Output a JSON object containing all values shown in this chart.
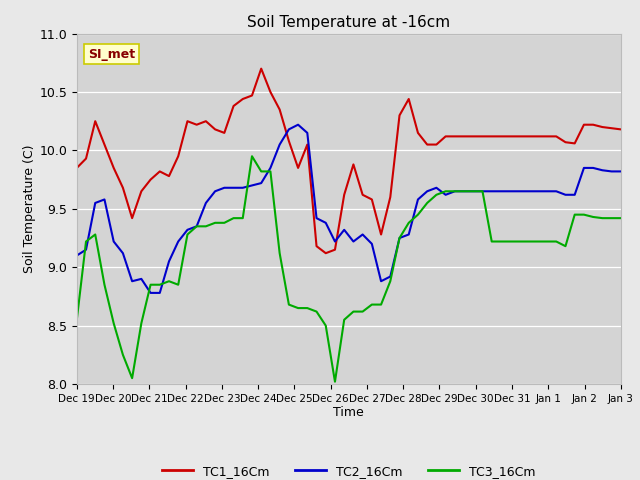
{
  "title": "Soil Temperature at -16cm",
  "xlabel": "Time",
  "ylabel": "Soil Temperature (C)",
  "ylim": [
    8.0,
    11.0
  ],
  "yticks": [
    8.0,
    8.5,
    9.0,
    9.5,
    10.0,
    10.5,
    11.0
  ],
  "legend_labels": [
    "TC1_16Cm",
    "TC2_16Cm",
    "TC3_16Cm"
  ],
  "line_colors": [
    "#cc0000",
    "#0000cc",
    "#00aa00"
  ],
  "line_width": 1.5,
  "background_color": "#e8e8e8",
  "plot_bg_color": "#d4d4d4",
  "annotation_text": "SI_met",
  "annotation_bg": "#ffffcc",
  "annotation_border": "#cccc00",
  "annotation_text_color": "#880000",
  "xtick_labels": [
    "Dec 19",
    "Dec 20",
    "Dec 21",
    "Dec 22",
    "Dec 23",
    "Dec 24",
    "Dec 25",
    "Dec 26",
    "Dec 27",
    "Dec 28",
    "Dec 29",
    "Dec 30",
    "Dec 31",
    "Jan 1",
    "Jan 2",
    "Jan 3"
  ],
  "TC1": [
    9.85,
    9.93,
    10.25,
    10.05,
    9.85,
    9.68,
    9.42,
    9.65,
    9.75,
    9.82,
    9.78,
    9.95,
    10.25,
    10.22,
    10.25,
    10.18,
    10.15,
    10.38,
    10.44,
    10.47,
    10.7,
    10.5,
    10.35,
    10.08,
    9.85,
    10.05,
    9.18,
    9.12,
    9.15,
    9.62,
    9.88,
    9.62,
    9.58,
    9.28,
    9.6,
    10.3,
    10.44,
    10.15,
    10.05,
    10.05,
    10.12,
    10.12,
    10.12,
    10.12,
    10.12,
    10.12,
    10.12,
    10.12,
    10.12,
    10.12,
    10.12,
    10.12,
    10.12,
    10.07,
    10.06,
    10.22,
    10.22,
    10.2,
    10.19,
    10.18
  ],
  "TC2": [
    9.1,
    9.15,
    9.55,
    9.58,
    9.22,
    9.12,
    8.88,
    8.9,
    8.78,
    8.78,
    9.05,
    9.22,
    9.32,
    9.35,
    9.55,
    9.65,
    9.68,
    9.68,
    9.68,
    9.7,
    9.72,
    9.85,
    10.05,
    10.18,
    10.22,
    10.15,
    9.42,
    9.38,
    9.22,
    9.32,
    9.22,
    9.28,
    9.2,
    8.88,
    8.92,
    9.25,
    9.28,
    9.58,
    9.65,
    9.68,
    9.62,
    9.65,
    9.65,
    9.65,
    9.65,
    9.65,
    9.65,
    9.65,
    9.65,
    9.65,
    9.65,
    9.65,
    9.65,
    9.62,
    9.62,
    9.85,
    9.85,
    9.83,
    9.82,
    9.82
  ],
  "TC3": [
    8.55,
    9.22,
    9.28,
    8.85,
    8.52,
    8.25,
    8.05,
    8.52,
    8.85,
    8.85,
    8.88,
    8.85,
    9.28,
    9.35,
    9.35,
    9.38,
    9.38,
    9.42,
    9.42,
    9.95,
    9.82,
    9.82,
    9.12,
    8.68,
    8.65,
    8.65,
    8.62,
    8.5,
    8.02,
    8.55,
    8.62,
    8.62,
    8.68,
    8.68,
    8.88,
    9.25,
    9.38,
    9.45,
    9.55,
    9.62,
    9.65,
    9.65,
    9.65,
    9.65,
    9.65,
    9.22,
    9.22,
    9.22,
    9.22,
    9.22,
    9.22,
    9.22,
    9.22,
    9.18,
    9.45,
    9.45,
    9.43,
    9.42,
    9.42,
    9.42
  ]
}
